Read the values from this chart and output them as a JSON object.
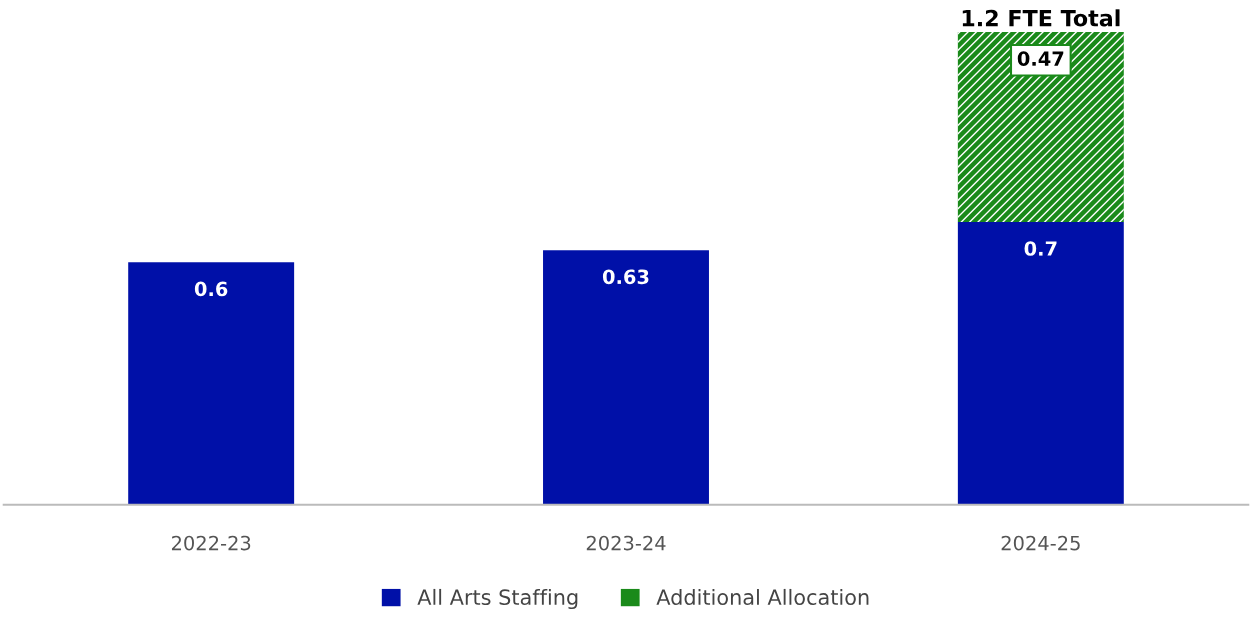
{
  "chart_data": {
    "type": "bar",
    "stacked": true,
    "categories": [
      "2022-23",
      "2023-24",
      "2024-25"
    ],
    "series": [
      {
        "name": "All Arts Staffing",
        "color": "#0010a8",
        "values": [
          0.6,
          0.63,
          0.7
        ]
      },
      {
        "name": "Additional Allocation",
        "color": "#1a8a1a",
        "values": [
          null,
          null,
          0.47
        ]
      }
    ],
    "data_labels": true,
    "totals": [
      null,
      null,
      "1.2 FTE Total"
    ],
    "grid": false,
    "legend": "bottom"
  }
}
